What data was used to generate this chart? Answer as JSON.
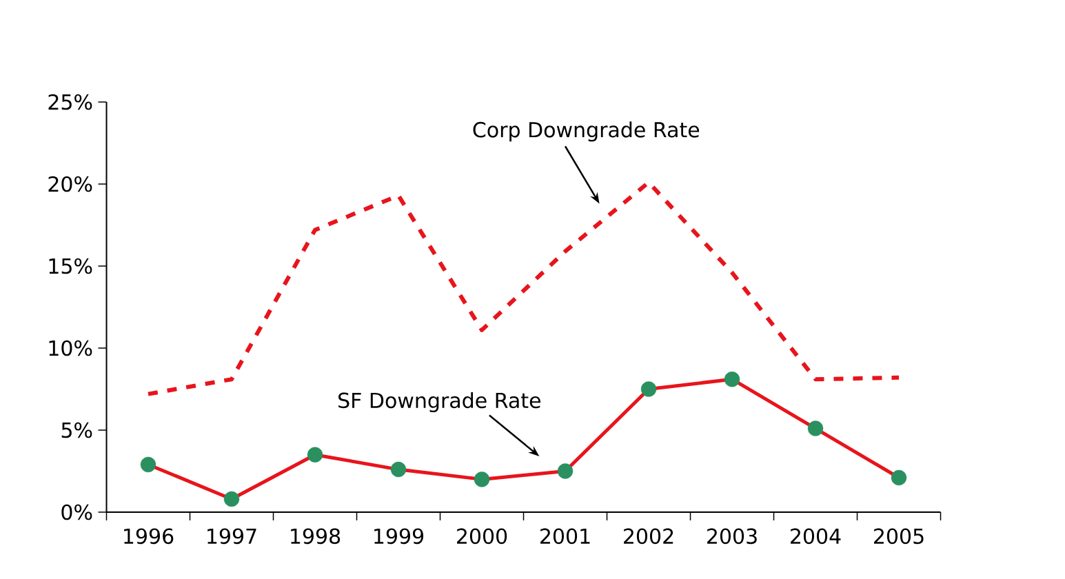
{
  "chart_data": {
    "type": "line",
    "categories": [
      "1996",
      "1997",
      "1998",
      "1999",
      "2000",
      "2001",
      "2002",
      "2003",
      "2004",
      "2005"
    ],
    "series": [
      {
        "name": "Corp Downgrade Rate",
        "color": "#e8141c",
        "line_style": "dashed",
        "marker": "none",
        "values": [
          7.2,
          8.1,
          17.2,
          19.3,
          11.1,
          15.9,
          20.1,
          14.6,
          8.1,
          8.2
        ]
      },
      {
        "name": "SF Downgrade Rate",
        "color": "#e8141c",
        "line_style": "solid",
        "marker": "circle",
        "colors": [
          "#2a9060",
          "#2a9060",
          "#2a9060",
          "#2a9060",
          "#2a9060",
          "#2a9060",
          "#2a9060",
          "#2a9060",
          "#2a9060",
          "#2a9060"
        ],
        "values": [
          2.9,
          0.8,
          3.5,
          2.6,
          2.0,
          2.5,
          7.5,
          8.1,
          5.1,
          2.1
        ]
      }
    ],
    "ylim": [
      0,
      25
    ],
    "yticks": [
      {
        "value": 0,
        "label": "0%"
      },
      {
        "value": 5,
        "label": "5%"
      },
      {
        "value": 10,
        "label": "10%"
      },
      {
        "value": 15,
        "label": "15%"
      },
      {
        "value": 20,
        "label": "20%"
      },
      {
        "value": 25,
        "label": "25%"
      }
    ],
    "grid": false,
    "legend": false
  }
}
